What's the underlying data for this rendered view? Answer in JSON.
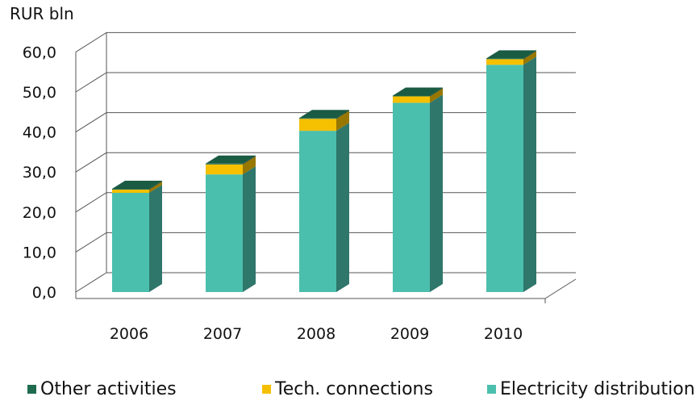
{
  "chart_data": {
    "type": "bar",
    "stacked": true,
    "three_d": true,
    "ylabel": "RUR bln",
    "ylim": [
      0,
      60
    ],
    "yticks": [
      "0,0",
      "10,0",
      "20,0",
      "30,0",
      "40,0",
      "50,0",
      "60,0"
    ],
    "grid": true,
    "legend_position": "bottom",
    "categories": [
      "2006",
      "2007",
      "2008",
      "2009",
      "2010"
    ],
    "series": [
      {
        "name": "Electricity distribution",
        "color": "#4bbfad",
        "values": [
          24.8,
          29.4,
          40.3,
          47.3,
          56.8
        ]
      },
      {
        "name": "Tech. connections",
        "color": "#f5c000",
        "values": [
          0.8,
          2.5,
          3.0,
          1.6,
          1.4
        ]
      },
      {
        "name": "Other activities",
        "color": "#1f6b4f",
        "values": [
          0.2,
          0.2,
          0.2,
          0.2,
          0.2
        ]
      }
    ]
  }
}
